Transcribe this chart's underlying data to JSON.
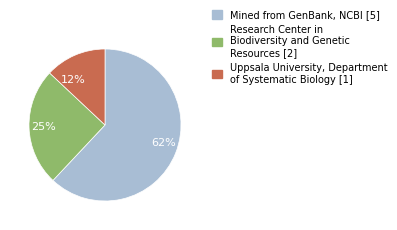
{
  "slices": [
    62,
    25,
    13
  ],
  "labels": [
    "62%",
    "25%",
    "12%"
  ],
  "colors": [
    "#a8bdd4",
    "#8fba6a",
    "#c96b50"
  ],
  "legend_labels": [
    "Mined from GenBank, NCBI [5]",
    "Research Center in\nBiodiversity and Genetic\nResources [2]",
    "Uppsala University, Department\nof Systematic Biology [1]"
  ],
  "legend_colors": [
    "#a8bdd4",
    "#8fba6a",
    "#c96b50"
  ],
  "startangle": 90,
  "text_color": "white",
  "fontsize": 8,
  "legend_fontsize": 7,
  "background_color": "#ffffff"
}
